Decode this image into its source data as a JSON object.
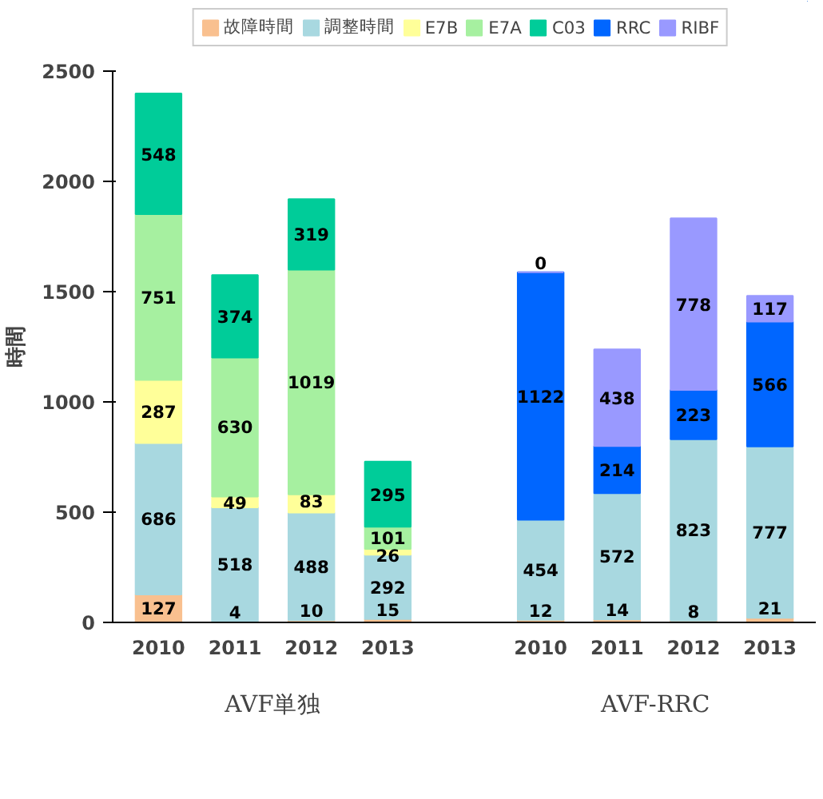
{
  "chart_data": {
    "type": "bar",
    "stacked": true,
    "ylabel": "時間",
    "ylim": [
      0,
      2500
    ],
    "yticks": [
      0,
      500,
      1000,
      1500,
      2000,
      2500
    ],
    "grid": false,
    "legend": "top",
    "data_labels": true,
    "categories": [
      "2010",
      "2011",
      "2012",
      "2013",
      null,
      "2010",
      "2011",
      "2012",
      "2013"
    ],
    "series": [
      {
        "name": "故障時間",
        "color": "#f9c08f",
        "values": [
          127,
          4,
          10,
          15,
          null,
          12,
          14,
          8,
          21
        ]
      },
      {
        "name": "調整時間",
        "color": "#a8d8e0",
        "values": [
          686,
          518,
          488,
          292,
          null,
          454,
          572,
          823,
          777
        ]
      },
      {
        "name": "E7B",
        "color": "#ffff99",
        "values": [
          287,
          49,
          83,
          26,
          null,
          null,
          null,
          null,
          null
        ]
      },
      {
        "name": "E7A",
        "color": "#a6f0a0",
        "values": [
          751,
          630,
          1019,
          101,
          null,
          null,
          null,
          null,
          null
        ]
      },
      {
        "name": "C03",
        "color": "#00cc99",
        "values": [
          548,
          374,
          319,
          295,
          null,
          null,
          null,
          null,
          null
        ]
      },
      {
        "name": "RRC",
        "color": "#0066ff",
        "values": [
          null,
          null,
          null,
          null,
          null,
          1122,
          214,
          223,
          566
        ]
      },
      {
        "name": "RIBF",
        "color": "#9999ff",
        "values": [
          null,
          null,
          null,
          null,
          null,
          0,
          438,
          778,
          117
        ]
      }
    ],
    "annotations": [
      "AVF単独",
      "AVF-RRC"
    ]
  }
}
